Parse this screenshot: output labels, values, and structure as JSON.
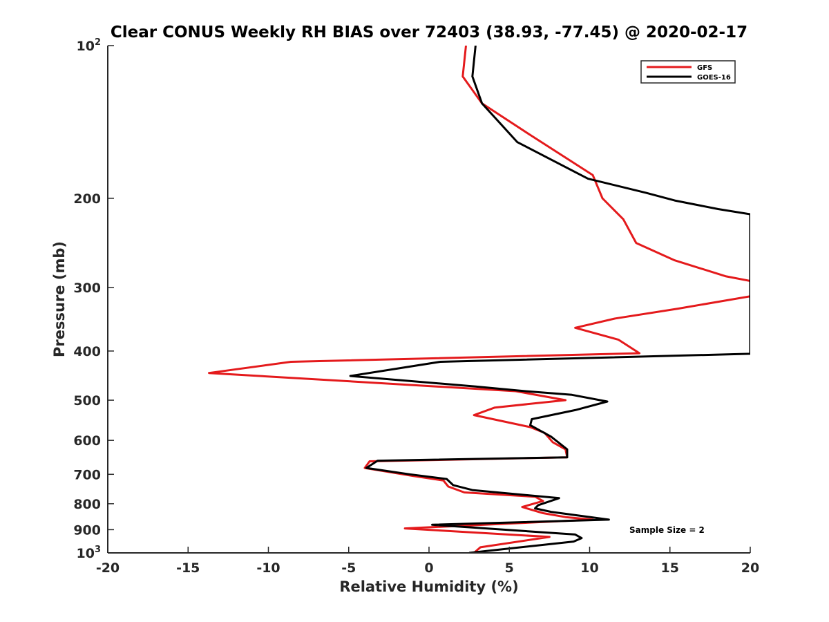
{
  "chart_data": {
    "type": "line",
    "title": "Clear CONUS Weekly RH BIAS over 72403 (38.93, -77.45) @ 2020-02-17",
    "xlabel": "Relative Humidity (%)",
    "ylabel": "Pressure (mb)",
    "xlim": [
      -20,
      20
    ],
    "ylim": [
      100,
      1000
    ],
    "y_scale": "log",
    "y_reversed": true,
    "grid": false,
    "legend_position": "top-right",
    "x_ticks": [
      "-20",
      "-15",
      "-10",
      "-5",
      "0",
      "5",
      "10",
      "15",
      "20"
    ],
    "y_ticks": [
      {
        "base": "10",
        "exp": "2",
        "value": 100
      },
      {
        "label": "200",
        "value": 200
      },
      {
        "label": "300",
        "value": 300
      },
      {
        "label": "400",
        "value": 400
      },
      {
        "label": "500",
        "value": 500
      },
      {
        "label": "600",
        "value": 600
      },
      {
        "label": "700",
        "value": 700
      },
      {
        "label": "800",
        "value": 800
      },
      {
        "label": "900",
        "value": 900
      },
      {
        "base": "10",
        "exp": "3",
        "value": 1000
      }
    ],
    "annotation": "Sample Size = 2",
    "series": [
      {
        "name": "GFS",
        "color": "#e41a1c",
        "points": [
          [
            2.3,
            100
          ],
          [
            2.1,
            115
          ],
          [
            3.3,
            130
          ],
          [
            6.3,
            150
          ],
          [
            10.2,
            180
          ],
          [
            10.8,
            200
          ],
          [
            12.1,
            220
          ],
          [
            12.9,
            245
          ],
          [
            15.3,
            265
          ],
          [
            18.5,
            285
          ],
          [
            20,
            291
          ],
          [
            20,
            312
          ],
          [
            15.5,
            330
          ],
          [
            11.6,
            345
          ],
          [
            9.1,
            360
          ],
          [
            11.8,
            380
          ],
          [
            13.1,
            404
          ],
          [
            -8.6,
            420
          ],
          [
            -13.7,
            442
          ],
          [
            5.4,
            480
          ],
          [
            8.5,
            500
          ],
          [
            4.1,
            517
          ],
          [
            2.8,
            535
          ],
          [
            6.3,
            565
          ],
          [
            7.2,
            580
          ],
          [
            7.7,
            605
          ],
          [
            8.5,
            625
          ],
          [
            8.6,
            648
          ],
          [
            -3.7,
            660
          ],
          [
            -4.0,
            680
          ],
          [
            -1.0,
            705
          ],
          [
            0.9,
            720
          ],
          [
            1.2,
            740
          ],
          [
            2.2,
            760
          ],
          [
            6.6,
            775
          ],
          [
            7.1,
            790
          ],
          [
            5.8,
            812
          ],
          [
            7.1,
            835
          ],
          [
            8.5,
            850
          ],
          [
            10.2,
            860
          ],
          [
            -1.5,
            895
          ],
          [
            7.5,
            930
          ],
          [
            3.2,
            975
          ],
          [
            2.8,
            1000
          ]
        ]
      },
      {
        "name": "GOES-16",
        "color": "#000000",
        "points": [
          [
            2.9,
            100
          ],
          [
            2.7,
            115
          ],
          [
            3.3,
            130
          ],
          [
            5.5,
            155
          ],
          [
            9.9,
            183
          ],
          [
            13.5,
            195
          ],
          [
            15.3,
            202
          ],
          [
            18.0,
            210
          ],
          [
            20,
            215
          ],
          [
            20,
            405
          ],
          [
            0.7,
            420
          ],
          [
            -4.9,
            448
          ],
          [
            2.9,
            470
          ],
          [
            6.0,
            480
          ],
          [
            8.9,
            488
          ],
          [
            11.1,
            503
          ],
          [
            9.1,
            523
          ],
          [
            6.4,
            545
          ],
          [
            6.3,
            560
          ],
          [
            7.6,
            590
          ],
          [
            8.6,
            625
          ],
          [
            8.6,
            648
          ],
          [
            -3.2,
            658
          ],
          [
            -3.9,
            680
          ],
          [
            -1.2,
            700
          ],
          [
            1.1,
            715
          ],
          [
            1.5,
            735
          ],
          [
            2.7,
            752
          ],
          [
            8.1,
            780
          ],
          [
            6.8,
            805
          ],
          [
            6.6,
            817
          ],
          [
            7.6,
            830
          ],
          [
            11.2,
            860
          ],
          [
            0.2,
            880
          ],
          [
            9.1,
            920
          ],
          [
            9.5,
            935
          ],
          [
            9.0,
            950
          ],
          [
            2.5,
            1000
          ]
        ]
      }
    ]
  }
}
